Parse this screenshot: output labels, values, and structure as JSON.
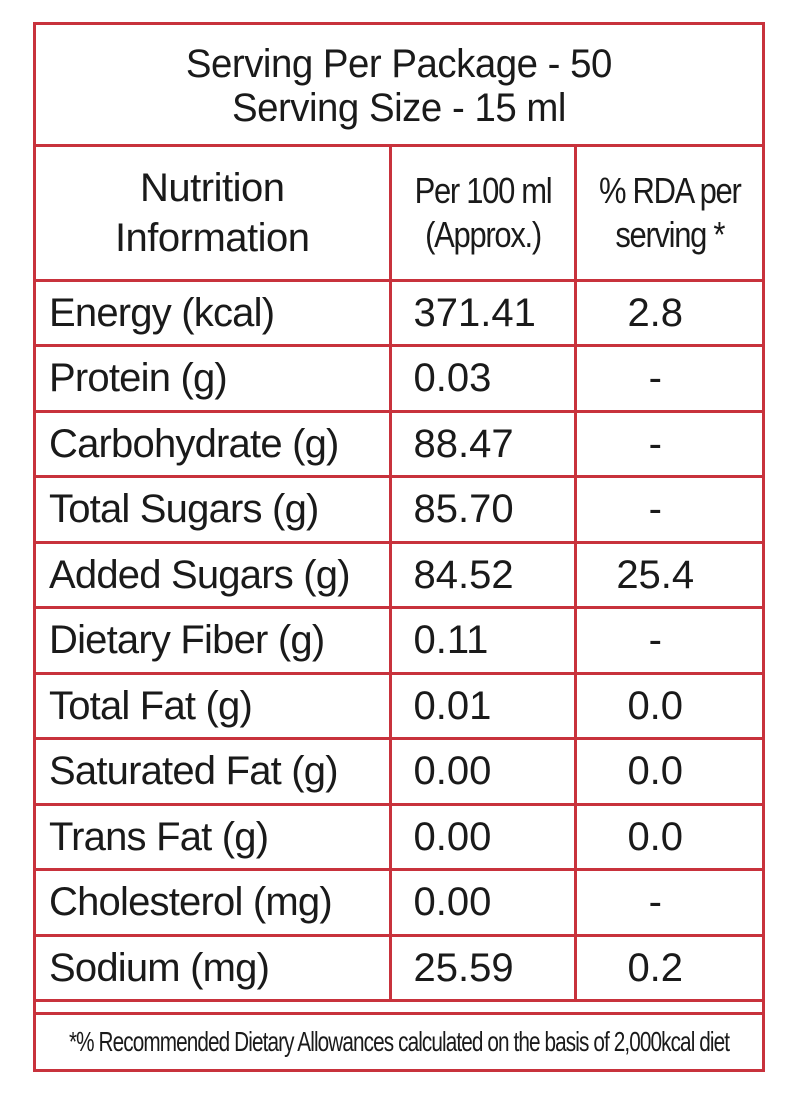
{
  "header": {
    "line1": "Serving Per Package - 50",
    "line2": "Serving Size - 15 ml"
  },
  "columns": {
    "col1": [
      "Nutrition",
      "Information"
    ],
    "col2": [
      "Per 100 ml",
      "(Approx.)"
    ],
    "col3": [
      "% RDA per",
      "serving *"
    ]
  },
  "rows": [
    {
      "name": "Energy (kcal)",
      "per100": "371.41",
      "rda": "2.8"
    },
    {
      "name": "Protein (g)",
      "per100": "0.03",
      "rda": "-"
    },
    {
      "name": "Carbohydrate (g)",
      "per100": "88.47",
      "rda": "-"
    },
    {
      "name": "Total Sugars (g)",
      "per100": "85.70",
      "rda": "-"
    },
    {
      "name": "Added Sugars (g)",
      "per100": "84.52",
      "rda": "25.4"
    },
    {
      "name": "Dietary Fiber (g)",
      "per100": "0.11",
      "rda": "-"
    },
    {
      "name": "Total Fat (g)",
      "per100": "0.01",
      "rda": "0.0"
    },
    {
      "name": "Saturated Fat (g)",
      "per100": "0.00",
      "rda": "0.0"
    },
    {
      "name": "Trans Fat (g)",
      "per100": "0.00",
      "rda": "0.0"
    },
    {
      "name": "Cholesterol (mg)",
      "per100": "0.00",
      "rda": "-"
    },
    {
      "name": "Sodium (mg)",
      "per100": "25.59",
      "rda": "0.2"
    }
  ],
  "footnote": "*% Recommended Dietary Allowances calculated on the basis of 2,000kcal diet",
  "colors": {
    "border": "#c8323c",
    "text": "#1a1a1a"
  }
}
